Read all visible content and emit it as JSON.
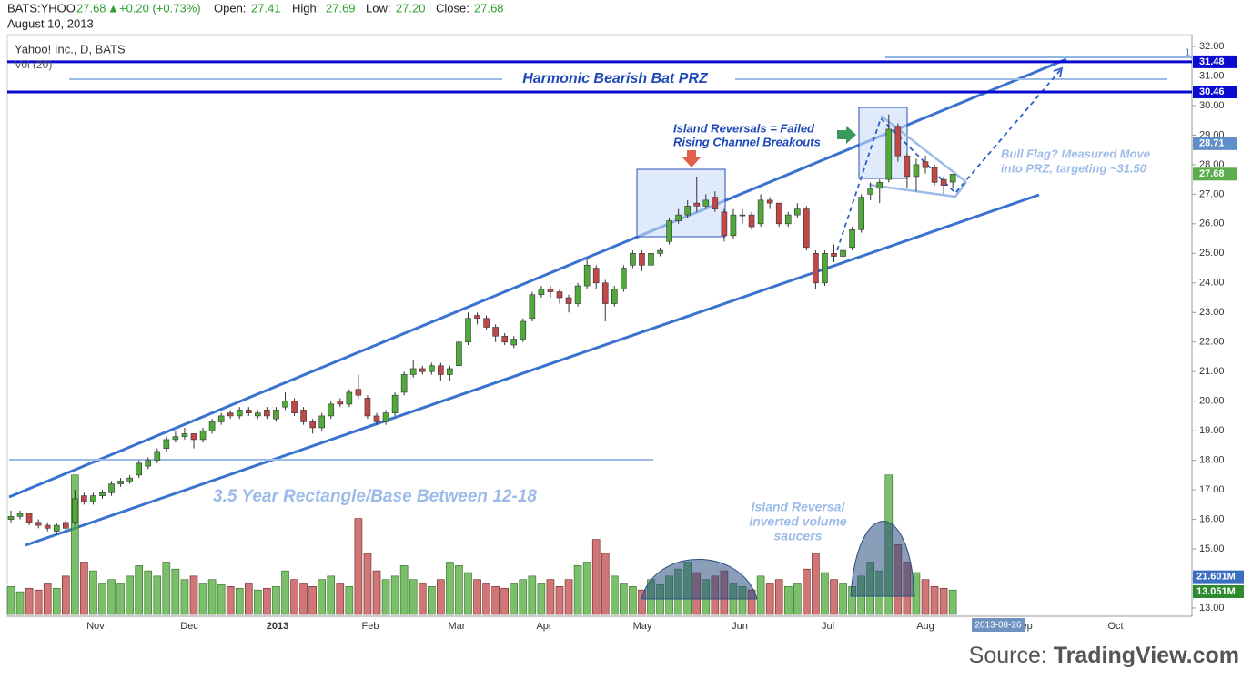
{
  "chart_data": {
    "type": "candlestick",
    "header": {
      "symbol": "BATS:YHOO",
      "last": 27.68,
      "arrow": "▲",
      "change": "+0.20 (+0.73%)",
      "open_label": "Open:",
      "open": 27.41,
      "high_label": "High:",
      "high": 27.69,
      "low_label": "Low:",
      "low": 27.2,
      "low_text": "27.20",
      "close_label": "Close:",
      "close": 27.68,
      "date": "August 10, 2013"
    },
    "title": "Yahoo! Inc., D, BATS",
    "volume_title": "Vol (20)",
    "up_color": "#4faa3a",
    "down_color": "#c04848",
    "ylim": [
      13,
      32
    ],
    "yticks": [
      {
        "value": 13,
        "label": "13.00"
      },
      {
        "value": 14,
        "label": "14.00"
      },
      {
        "value": 15,
        "label": "15.00"
      },
      {
        "value": 16,
        "label": "16.00"
      },
      {
        "value": 17,
        "label": "17.00"
      },
      {
        "value": 18,
        "label": "18.00"
      },
      {
        "value": 19,
        "label": "19.00"
      },
      {
        "value": 20,
        "label": "20.00"
      },
      {
        "value": 21,
        "label": "21.00"
      },
      {
        "value": 22,
        "label": "22.00"
      },
      {
        "value": 23,
        "label": "23.00"
      },
      {
        "value": 24,
        "label": "24.00"
      },
      {
        "value": 25,
        "label": "25.00"
      },
      {
        "value": 26,
        "label": "26.00"
      },
      {
        "value": 27,
        "label": "27.00"
      },
      {
        "value": 28,
        "label": "28.00"
      },
      {
        "value": 29,
        "label": "29.00"
      },
      {
        "value": 30,
        "label": "30.00"
      },
      {
        "value": 31,
        "label": "31.00"
      },
      {
        "value": 32,
        "label": "32.00"
      }
    ],
    "volume_ylim": [
      0,
      83
    ],
    "x_labels": [
      "Nov",
      "Dec",
      "2013",
      "Feb",
      "Mar",
      "Apr",
      "May",
      "Jun",
      "Jul",
      "Aug",
      "Sep",
      "Oct"
    ],
    "cursor_date": "2013-08-26",
    "price_labels": [
      31.48,
      30.46,
      28.71,
      27.68
    ],
    "volume_labels": [
      {
        "value": 21.601,
        "label": "21.601M"
      },
      {
        "value": 13.051,
        "label": "13.051M"
      }
    ],
    "candles": [
      [
        16.0,
        16.3,
        15.9,
        16.1
      ],
      [
        16.1,
        16.3,
        16.0,
        16.2
      ],
      [
        16.2,
        16.2,
        15.8,
        15.9
      ],
      [
        15.9,
        16.0,
        15.7,
        15.8
      ],
      [
        15.8,
        15.9,
        15.6,
        15.7
      ],
      [
        15.6,
        15.9,
        15.5,
        15.8
      ],
      [
        15.9,
        16.0,
        15.6,
        15.7
      ],
      [
        15.9,
        17.0,
        15.8,
        16.7
      ],
      [
        16.8,
        16.9,
        16.5,
        16.6
      ],
      [
        16.6,
        16.9,
        16.5,
        16.8
      ],
      [
        16.8,
        17.0,
        16.7,
        16.9
      ],
      [
        16.9,
        17.3,
        16.8,
        17.2
      ],
      [
        17.2,
        17.4,
        17.1,
        17.3
      ],
      [
        17.3,
        17.5,
        17.2,
        17.4
      ],
      [
        17.5,
        18.0,
        17.4,
        17.9
      ],
      [
        17.8,
        18.1,
        17.7,
        18.0
      ],
      [
        18.0,
        18.4,
        17.9,
        18.3
      ],
      [
        18.4,
        18.8,
        18.3,
        18.7
      ],
      [
        18.7,
        19.0,
        18.6,
        18.8
      ],
      [
        18.8,
        19.1,
        18.7,
        18.9
      ],
      [
        18.9,
        18.9,
        18.4,
        18.7
      ],
      [
        18.7,
        19.1,
        18.6,
        19.0
      ],
      [
        19.0,
        19.4,
        18.9,
        19.3
      ],
      [
        19.3,
        19.6,
        19.2,
        19.5
      ],
      [
        19.6,
        19.7,
        19.4,
        19.5
      ],
      [
        19.5,
        19.8,
        19.4,
        19.7
      ],
      [
        19.7,
        19.8,
        19.5,
        19.6
      ],
      [
        19.5,
        19.7,
        19.4,
        19.6
      ],
      [
        19.7,
        19.8,
        19.4,
        19.5
      ],
      [
        19.4,
        19.8,
        19.3,
        19.7
      ],
      [
        19.8,
        20.3,
        19.7,
        20.0
      ],
      [
        20.0,
        20.1,
        19.5,
        19.6
      ],
      [
        19.7,
        19.8,
        19.2,
        19.3
      ],
      [
        19.3,
        19.4,
        18.9,
        19.1
      ],
      [
        19.1,
        19.6,
        19.0,
        19.5
      ],
      [
        19.5,
        20.0,
        19.4,
        19.9
      ],
      [
        20.0,
        20.1,
        19.8,
        19.9
      ],
      [
        19.9,
        20.4,
        19.8,
        20.3
      ],
      [
        20.4,
        20.9,
        20.1,
        20.2
      ],
      [
        20.1,
        20.2,
        19.4,
        19.5
      ],
      [
        19.5,
        19.6,
        19.2,
        19.3
      ],
      [
        19.3,
        19.7,
        19.2,
        19.6
      ],
      [
        19.6,
        20.3,
        19.5,
        20.2
      ],
      [
        20.3,
        21.0,
        20.2,
        20.9
      ],
      [
        20.9,
        21.4,
        20.8,
        21.1
      ],
      [
        21.1,
        21.2,
        20.9,
        21.0
      ],
      [
        21.0,
        21.3,
        20.9,
        21.2
      ],
      [
        21.2,
        21.3,
        20.7,
        20.9
      ],
      [
        20.9,
        21.2,
        20.7,
        21.1
      ],
      [
        21.2,
        22.1,
        21.1,
        22.0
      ],
      [
        22.0,
        23.0,
        21.9,
        22.8
      ],
      [
        22.9,
        23.0,
        22.6,
        22.8
      ],
      [
        22.8,
        22.9,
        22.4,
        22.5
      ],
      [
        22.5,
        22.6,
        22.0,
        22.2
      ],
      [
        22.2,
        22.3,
        21.9,
        22.0
      ],
      [
        21.9,
        22.2,
        21.8,
        22.1
      ],
      [
        22.1,
        22.8,
        22.0,
        22.7
      ],
      [
        22.8,
        23.7,
        22.7,
        23.6
      ],
      [
        23.6,
        23.9,
        23.5,
        23.8
      ],
      [
        23.8,
        23.9,
        23.5,
        23.7
      ],
      [
        23.7,
        23.8,
        23.3,
        23.5
      ],
      [
        23.5,
        23.6,
        23.0,
        23.3
      ],
      [
        23.3,
        24.0,
        23.2,
        23.9
      ],
      [
        23.9,
        24.8,
        23.8,
        24.6
      ],
      [
        24.5,
        24.6,
        23.8,
        24.0
      ],
      [
        24.0,
        24.1,
        22.7,
        23.3
      ],
      [
        23.3,
        23.9,
        23.2,
        23.8
      ],
      [
        23.8,
        24.6,
        23.7,
        24.5
      ],
      [
        24.6,
        25.1,
        24.5,
        25.0
      ],
      [
        25.0,
        25.1,
        24.4,
        24.6
      ],
      [
        24.6,
        25.1,
        24.5,
        25.0
      ],
      [
        25.0,
        25.2,
        24.9,
        25.1
      ],
      [
        25.4,
        26.2,
        25.3,
        26.1
      ],
      [
        26.1,
        26.5,
        26.0,
        26.3
      ],
      [
        26.3,
        26.8,
        26.2,
        26.6
      ],
      [
        26.7,
        27.6,
        26.4,
        26.6
      ],
      [
        26.6,
        27.0,
        26.5,
        26.8
      ],
      [
        26.9,
        27.1,
        26.4,
        26.5
      ],
      [
        26.4,
        26.5,
        25.4,
        25.6
      ],
      [
        25.6,
        26.5,
        25.5,
        26.3
      ],
      [
        26.3,
        26.5,
        26.0,
        26.3
      ],
      [
        26.3,
        26.4,
        25.8,
        25.9
      ],
      [
        26.0,
        27.0,
        25.9,
        26.8
      ],
      [
        26.8,
        26.9,
        26.5,
        26.7
      ],
      [
        26.7,
        26.7,
        25.9,
        26.0
      ],
      [
        26.0,
        26.4,
        25.9,
        26.3
      ],
      [
        26.3,
        26.7,
        26.2,
        26.5
      ],
      [
        26.5,
        26.6,
        25.1,
        25.2
      ],
      [
        25.0,
        25.1,
        23.8,
        24.0
      ],
      [
        24.0,
        25.1,
        23.9,
        25.0
      ],
      [
        25.0,
        25.3,
        24.7,
        24.9
      ],
      [
        24.9,
        25.2,
        24.7,
        25.1
      ],
      [
        25.2,
        25.9,
        25.1,
        25.8
      ],
      [
        25.8,
        27.0,
        25.7,
        26.9
      ],
      [
        27.0,
        27.4,
        26.8,
        27.2
      ],
      [
        27.2,
        27.5,
        26.7,
        27.4
      ],
      [
        27.5,
        29.7,
        27.4,
        29.2
      ],
      [
        29.3,
        29.4,
        28.1,
        28.3
      ],
      [
        28.3,
        28.4,
        27.2,
        27.6
      ],
      [
        27.6,
        28.2,
        27.1,
        28.0
      ],
      [
        28.1,
        28.3,
        27.7,
        27.9
      ],
      [
        27.9,
        28.0,
        27.3,
        27.4
      ],
      [
        27.5,
        27.6,
        27.0,
        27.3
      ],
      [
        27.41,
        27.69,
        27.2,
        27.68
      ]
    ],
    "volume": [
      16,
      13,
      15,
      14,
      18,
      15,
      22,
      80,
      30,
      25,
      18,
      20,
      18,
      22,
      28,
      25,
      22,
      30,
      26,
      20,
      22,
      18,
      20,
      17,
      16,
      15,
      18,
      14,
      15,
      16,
      25,
      20,
      18,
      16,
      20,
      22,
      18,
      16,
      55,
      35,
      25,
      20,
      22,
      28,
      20,
      18,
      16,
      20,
      30,
      28,
      24,
      20,
      18,
      16,
      15,
      18,
      20,
      22,
      18,
      20,
      16,
      20,
      28,
      30,
      43,
      35,
      22,
      18,
      16,
      14,
      20,
      17,
      22,
      26,
      30,
      24,
      20,
      22,
      25,
      18,
      16,
      14,
      22,
      18,
      20,
      16,
      18,
      26,
      35,
      24,
      20,
      18,
      16,
      22,
      30,
      25,
      80,
      40,
      30,
      24,
      20,
      16,
      15,
      14
    ],
    "annotations": {
      "prz": "Harmonic Bearish Bat PRZ",
      "island_1": "Island Reversals = Failed",
      "island_2": "Rising Channel Breakouts",
      "flag_1": "Bull Flag?  Measured Move",
      "flag_2": "into PRZ, targeting ~31.50",
      "rect": "3.5 Year Rectangle/Base Between 12-18",
      "saucer_1": "Island Reversal",
      "saucer_2": "inverted volume",
      "saucer_3": "saucers",
      "fib": "1"
    },
    "source_prefix": "Source:",
    "source_name": "TradingView.com"
  }
}
